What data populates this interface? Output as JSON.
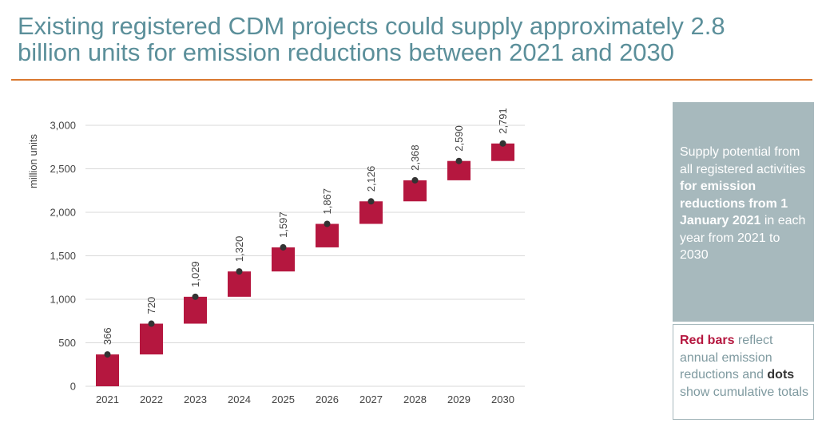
{
  "title": "Existing registered CDM projects could supply approximately 2.8 billion units for emission reductions between 2021 and 2030",
  "colors": {
    "title": "#5b8f9a",
    "rule": "#d9782f",
    "bar": "#b5173f",
    "dot": "#333333",
    "grid": "#d9d9d9",
    "panel": "#a7b9bd"
  },
  "panel_top": {
    "text1": "Supply potential from all registered activities ",
    "bold": "for emission reductions from 1 January 2021",
    "text2": " in each year from 2021 to 2030"
  },
  "panel_bottom": {
    "red_label": "Red bars",
    "text1": " reflect annual emission reductions and ",
    "dark_label": "dots",
    "text2": " show cumulative totals"
  },
  "chart_data": {
    "type": "bar",
    "ylabel": "million units",
    "xlabel": "",
    "ylim": [
      0,
      3000
    ],
    "yticks": [
      0,
      500,
      1000,
      1500,
      2000,
      2500,
      3000
    ],
    "ytick_labels": [
      "0",
      "500",
      "1,000",
      "1,500",
      "2,000",
      "2,500",
      "3,000"
    ],
    "grid": true,
    "categories": [
      "2021",
      "2022",
      "2023",
      "2024",
      "2025",
      "2026",
      "2027",
      "2028",
      "2029",
      "2030"
    ],
    "bar_bottom": [
      0,
      366,
      720,
      1029,
      1320,
      1597,
      1867,
      2126,
      2368,
      2590
    ],
    "bar_top": [
      366,
      720,
      1029,
      1320,
      1597,
      1867,
      2126,
      2368,
      2590,
      2791
    ],
    "cumulative": [
      366,
      720,
      1029,
      1320,
      1597,
      1867,
      2126,
      2368,
      2590,
      2791
    ],
    "data_labels": [
      "366",
      "720",
      "1,029",
      "1,320",
      "1,597",
      "1,867",
      "2,126",
      "2,368",
      "2,590",
      "2,791"
    ]
  }
}
